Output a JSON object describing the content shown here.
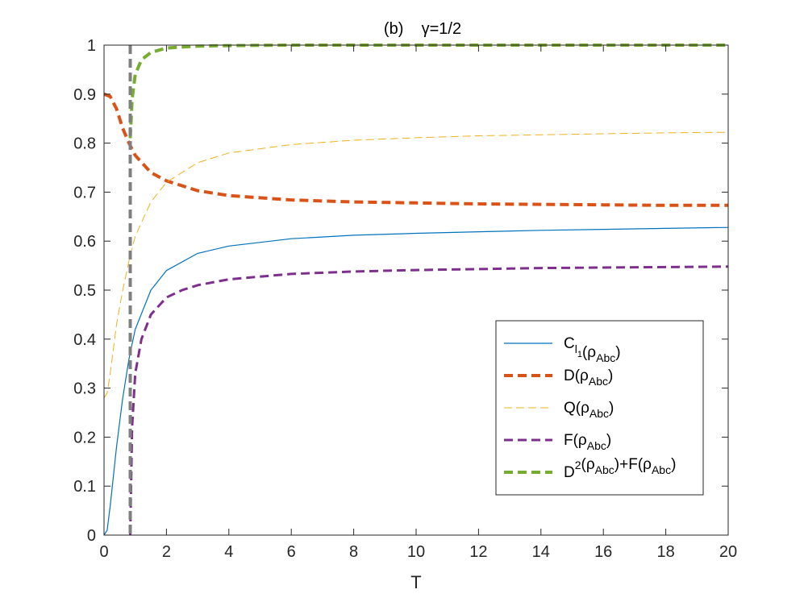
{
  "chart_data": {
    "type": "line",
    "title": "(b)    γ=1/2",
    "xlabel": "T",
    "ylabel": "",
    "xlim": [
      0,
      20
    ],
    "ylim": [
      0,
      1
    ],
    "xticks": [
      0,
      2,
      4,
      6,
      8,
      10,
      12,
      14,
      16,
      18,
      20
    ],
    "yticks": [
      0,
      0.1,
      0.2,
      0.3,
      0.4,
      0.5,
      0.6,
      0.7,
      0.8,
      0.9,
      1
    ],
    "xtick_labels": [
      "0",
      "2",
      "4",
      "6",
      "8",
      "10",
      "12",
      "14",
      "16",
      "18",
      "20"
    ],
    "ytick_labels": [
      "0",
      "0.1",
      "0.2",
      "0.3",
      "0.4",
      "0.5",
      "0.6",
      "0.7",
      "0.8",
      "0.9",
      "1"
    ],
    "grid": false,
    "legend_position": "lower-right",
    "vertical_line": {
      "x": 0.84,
      "color": "#7f7f7f",
      "style": "dashed"
    },
    "series": [
      {
        "name": "C_{l_1}(ρ_{Abc})",
        "legend": {
          "main": "C",
          "sub": "l",
          "subsub": "1",
          "arg": "(ρ",
          "argsub": "Abc",
          "close": ")"
        },
        "color": "#0072bd",
        "style": "solid",
        "width": 1.2,
        "x": [
          0,
          0.1,
          0.2,
          0.4,
          0.6,
          0.8,
          1.0,
          1.5,
          2,
          3,
          4,
          6,
          8,
          10,
          12,
          14,
          16,
          18,
          20
        ],
        "y": [
          0,
          0.01,
          0.06,
          0.18,
          0.28,
          0.36,
          0.42,
          0.5,
          0.54,
          0.575,
          0.59,
          0.605,
          0.612,
          0.616,
          0.619,
          0.622,
          0.624,
          0.626,
          0.628
        ]
      },
      {
        "name": "D(ρ_{Abc})",
        "legend": {
          "main": "D",
          "arg": "(ρ",
          "argsub": "Abc",
          "close": ")"
        },
        "color": "#d95319",
        "style": "dashed",
        "width": 4,
        "x": [
          0,
          0.2,
          0.4,
          0.6,
          0.8,
          1.0,
          1.5,
          2,
          3,
          4,
          6,
          8,
          10,
          12,
          14,
          16,
          18,
          20
        ],
        "y": [
          0.9,
          0.895,
          0.87,
          0.83,
          0.8,
          0.775,
          0.74,
          0.723,
          0.703,
          0.693,
          0.684,
          0.68,
          0.678,
          0.676,
          0.675,
          0.674,
          0.673,
          0.673
        ]
      },
      {
        "name": "Q(ρ_{Abc})",
        "legend": {
          "main": "Q",
          "arg": "(ρ",
          "argsub": "Abc",
          "close": ")"
        },
        "color": "#edb120",
        "style": "dashed",
        "width": 1,
        "x": [
          0,
          0.1,
          0.2,
          0.4,
          0.6,
          0.8,
          1.0,
          1.5,
          2,
          3,
          4,
          6,
          8,
          10,
          12,
          14,
          16,
          18,
          20
        ],
        "y": [
          0.28,
          0.29,
          0.33,
          0.43,
          0.5,
          0.56,
          0.61,
          0.68,
          0.72,
          0.76,
          0.78,
          0.797,
          0.806,
          0.811,
          0.815,
          0.817,
          0.819,
          0.821,
          0.822
        ]
      },
      {
        "name": "F(ρ_{Abc})",
        "legend": {
          "main": "F",
          "arg": "(ρ",
          "argsub": "Abc",
          "close": ")"
        },
        "color": "#7e2f8e",
        "style": "dashed",
        "width": 3,
        "x": [
          0.84,
          0.9,
          1.0,
          1.2,
          1.5,
          2,
          2.5,
          3,
          4,
          6,
          8,
          10,
          12,
          14,
          16,
          18,
          20
        ],
        "y": [
          0.0,
          0.22,
          0.33,
          0.4,
          0.45,
          0.485,
          0.5,
          0.51,
          0.522,
          0.533,
          0.538,
          0.541,
          0.543,
          0.545,
          0.546,
          0.547,
          0.548
        ]
      },
      {
        "name": "D^2(ρ_{Abc})+F(ρ_{Abc})",
        "legend": {
          "main": "D",
          "sup": "2",
          "arg": "(ρ",
          "argsub": "Abc",
          "close": ")+F(ρ",
          "argsub2": "Abc",
          "close2": ")"
        },
        "color": "#77ac30",
        "style": "dashed",
        "width": 4,
        "x": [
          0.84,
          0.9,
          1.0,
          1.2,
          1.5,
          2,
          3,
          4,
          6,
          10,
          15,
          20
        ],
        "y": [
          0.81,
          0.89,
          0.94,
          0.97,
          0.985,
          0.994,
          0.998,
          0.999,
          1.0,
          1.0,
          1.0,
          1.0
        ]
      }
    ]
  }
}
